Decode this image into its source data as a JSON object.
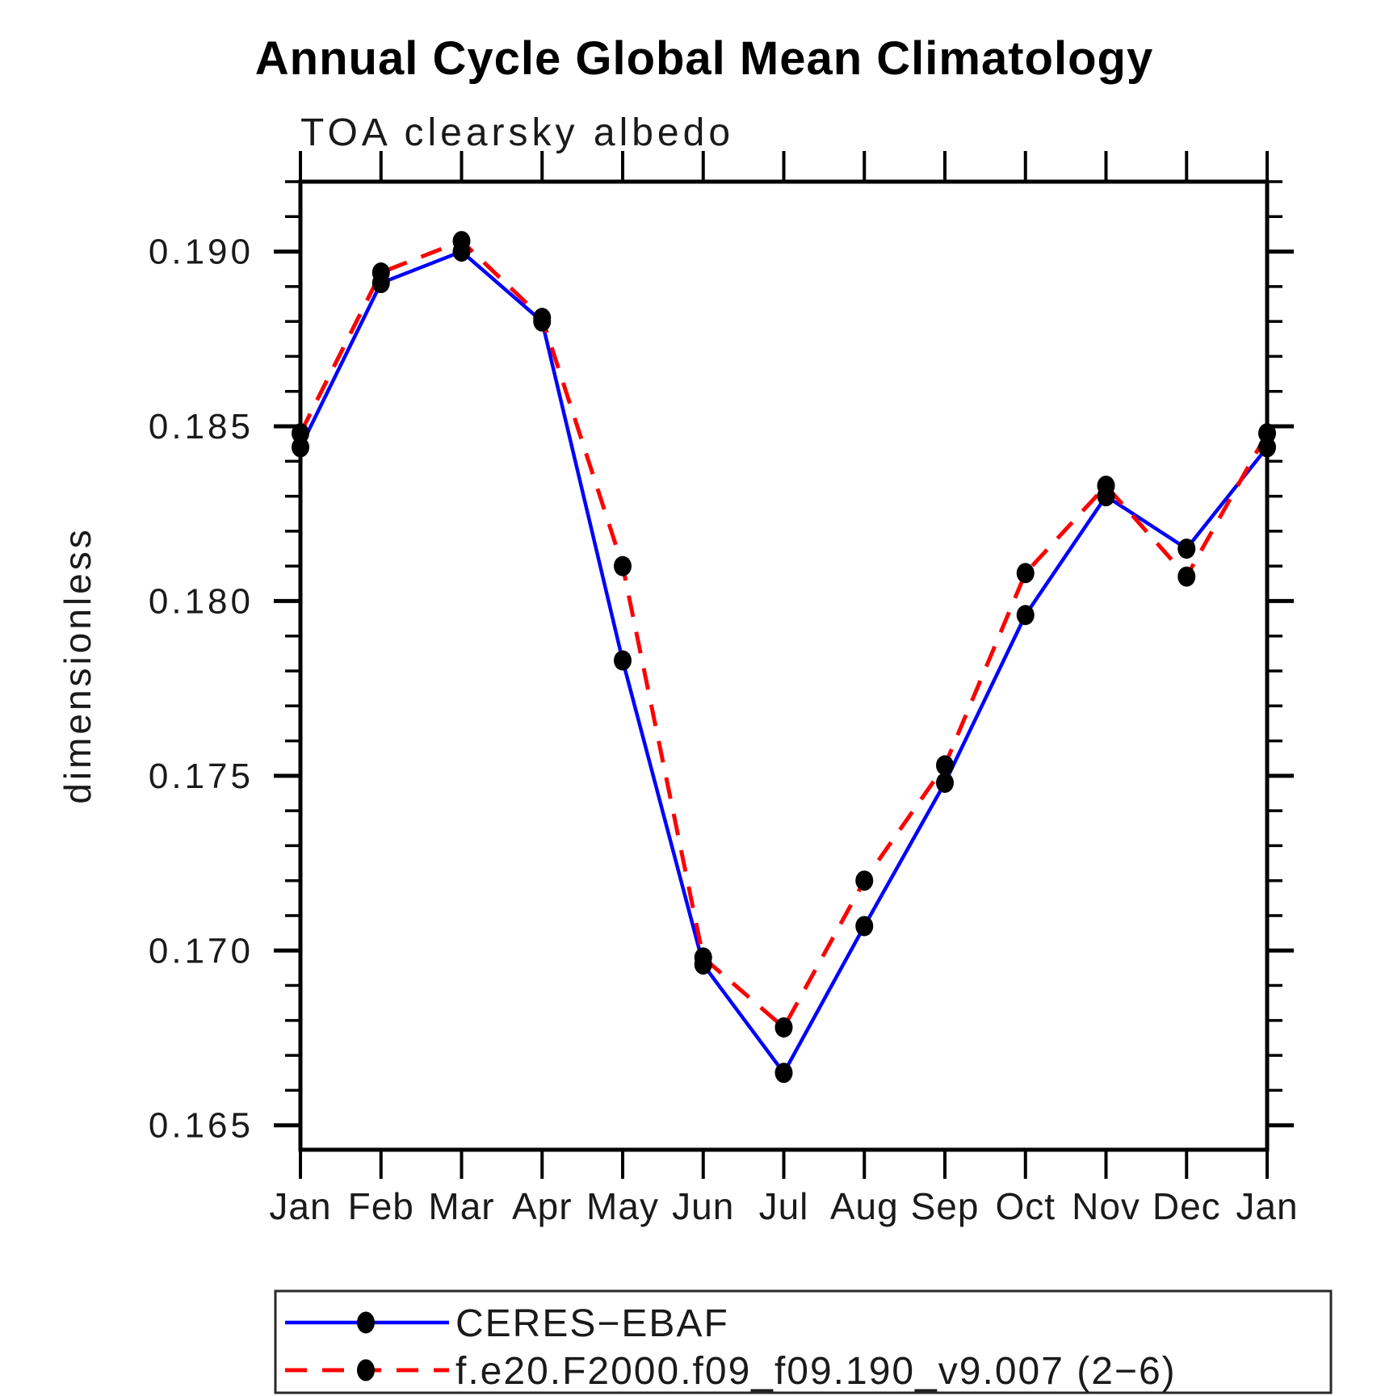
{
  "chart_data": {
    "type": "line",
    "title": "Annual Cycle Global Mean Climatology",
    "subtitle": "TOA clearsky albedo",
    "ylabel": "dimensionless",
    "xlabel": "",
    "x_categories": [
      "Jan",
      "Feb",
      "Mar",
      "Apr",
      "May",
      "Jun",
      "Jul",
      "Aug",
      "Sep",
      "Oct",
      "Nov",
      "Dec",
      "Jan"
    ],
    "ylim": [
      0.1643,
      0.192
    ],
    "y_major_ticks": [
      0.165,
      0.17,
      0.175,
      0.18,
      0.185,
      0.19
    ],
    "y_minor_step": 0.001,
    "grid": false,
    "legend_position": "bottom-left-box",
    "marker_color": "#000000",
    "series": [
      {
        "name": "CERES−EBAF",
        "color": "#0000ff",
        "style": "solid",
        "marker": "filled-circle",
        "values": [
          0.1844,
          0.1891,
          0.19,
          0.188,
          0.1783,
          0.1696,
          0.1665,
          0.1707,
          0.1748,
          0.1796,
          0.183,
          0.1815,
          0.1844
        ]
      },
      {
        "name": "f.e20.F2000.f09_f09.190_v9.007 (2−6)",
        "color": "#ff0000",
        "style": "dashed",
        "marker": "filled-circle",
        "values": [
          0.1848,
          0.1894,
          0.1903,
          0.1881,
          0.181,
          0.1698,
          0.1678,
          0.172,
          0.1753,
          0.1808,
          0.1833,
          0.1807,
          0.1848
        ]
      }
    ]
  }
}
